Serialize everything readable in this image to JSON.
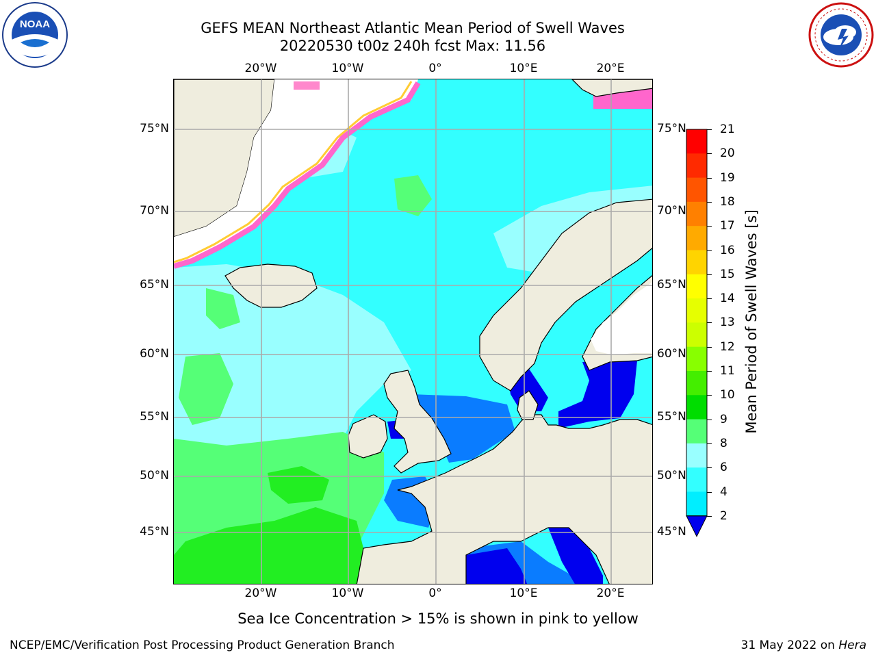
{
  "title": {
    "line1": "GEFS MEAN Northeast Atlantic Mean Period of Swell Waves",
    "line2": "20220530 t00z 240h fcst   Max: 11.56"
  },
  "axes": {
    "longitude_ticks": [
      "20°W",
      "10°W",
      "0°",
      "10°E",
      "20°E"
    ],
    "latitude_ticks": [
      "75°N",
      "70°N",
      "65°N",
      "60°N",
      "55°N",
      "50°N",
      "45°N"
    ]
  },
  "colorbar": {
    "label": "Mean Period of Swell Waves [s]",
    "ticks": [
      "21",
      "20",
      "19",
      "18",
      "17",
      "16",
      "15",
      "14",
      "13",
      "12",
      "11",
      "10",
      "9",
      "8",
      "6",
      "4",
      "2"
    ],
    "colors": [
      "#ff0000",
      "#ff2a00",
      "#ff5500",
      "#ff8000",
      "#ffaa00",
      "#ffd400",
      "#ffff00",
      "#e6ff00",
      "#ccff00",
      "#88ff00",
      "#44ee00",
      "#00dd00",
      "#55ff77",
      "#99ffff",
      "#33ffff",
      "#00eeff",
      "#0099ff",
      "#0000ee"
    ]
  },
  "chart_data": {
    "type": "heatmap",
    "title": "GEFS MEAN Northeast Atlantic Mean Period of Swell Waves",
    "subtitle": "20220530 t00z 240h fcst   Max: 11.56",
    "variable": "Mean Period of Swell Waves [s]",
    "max_value": 11.56,
    "units": "s",
    "color_scale_levels": [
      2,
      4,
      6,
      8,
      9,
      10,
      11,
      12,
      13,
      14,
      15,
      16,
      17,
      18,
      19,
      20,
      21
    ],
    "lon_ticks": [
      "20°W",
      "10°W",
      "0°",
      "10°E",
      "20°E"
    ],
    "lat_ticks": [
      "75°N",
      "70°N",
      "65°N",
      "60°N",
      "55°N",
      "50°N",
      "45°N"
    ],
    "note": "Sea Ice Concentration > 15% is shown in pink to yellow"
  },
  "footer": {
    "left": "NCEP/EMC/Verification Post Processing Product Generation Branch",
    "right_date": "31 May 2022 on",
    "right_host": "Hera"
  },
  "logos": {
    "noaa_text": "NOAA",
    "nws_text": "NATIONAL WEATHER SERVICE"
  }
}
